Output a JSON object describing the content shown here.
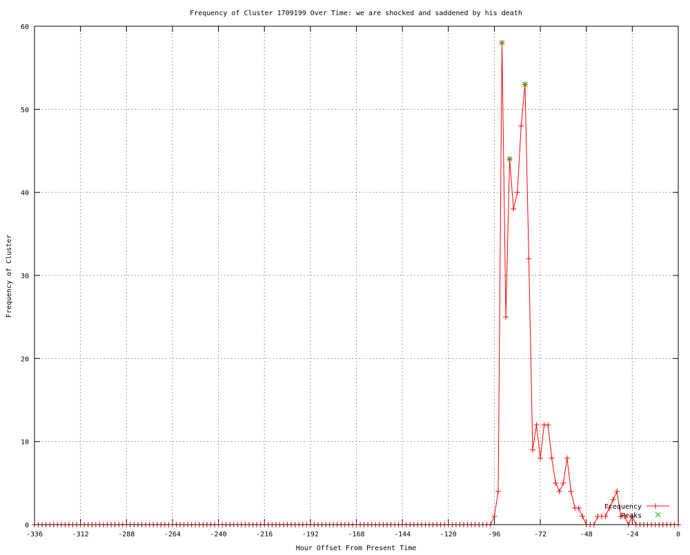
{
  "chart_data": {
    "type": "line",
    "title": "Frequency of Cluster 1709199 Over Time: we are shocked and saddened by his death",
    "xlabel": "Hour Offset From Present Time",
    "ylabel": "Frequency of Cluster",
    "xlim": [
      -336,
      0
    ],
    "ylim": [
      0,
      60
    ],
    "xticks": [
      -336,
      -312,
      -288,
      -264,
      -240,
      -216,
      -192,
      -168,
      -144,
      -120,
      -96,
      -72,
      -48,
      -24,
      0
    ],
    "yticks": [
      0,
      10,
      20,
      30,
      40,
      50,
      60
    ],
    "grid": true,
    "legend_position": "bottom-right",
    "x": [
      -336,
      -334,
      -332,
      -330,
      -328,
      -326,
      -324,
      -322,
      -320,
      -318,
      -316,
      -314,
      -312,
      -310,
      -308,
      -306,
      -304,
      -302,
      -300,
      -298,
      -296,
      -294,
      -292,
      -290,
      -288,
      -286,
      -284,
      -282,
      -280,
      -278,
      -276,
      -274,
      -272,
      -270,
      -268,
      -266,
      -264,
      -262,
      -260,
      -258,
      -256,
      -254,
      -252,
      -250,
      -248,
      -246,
      -244,
      -242,
      -240,
      -238,
      -236,
      -234,
      -232,
      -230,
      -228,
      -226,
      -224,
      -222,
      -220,
      -218,
      -216,
      -214,
      -212,
      -210,
      -208,
      -206,
      -204,
      -202,
      -200,
      -198,
      -196,
      -194,
      -192,
      -190,
      -188,
      -186,
      -184,
      -182,
      -180,
      -178,
      -176,
      -174,
      -172,
      -170,
      -168,
      -166,
      -164,
      -162,
      -160,
      -158,
      -156,
      -154,
      -152,
      -150,
      -148,
      -146,
      -144,
      -142,
      -140,
      -138,
      -136,
      -134,
      -132,
      -130,
      -128,
      -126,
      -124,
      -122,
      -120,
      -118,
      -116,
      -114,
      -112,
      -110,
      -108,
      -106,
      -104,
      -102,
      -100,
      -98,
      -96,
      -94,
      -92,
      -90,
      -88,
      -86,
      -84,
      -82,
      -80,
      -78,
      -76,
      -74,
      -72,
      -70,
      -68,
      -66,
      -64,
      -62,
      -60,
      -58,
      -56,
      -54,
      -52,
      -50,
      -48,
      -46,
      -44,
      -42,
      -40,
      -38,
      -36,
      -34,
      -32,
      -30,
      -28,
      -26,
      -24,
      -22,
      -20,
      -18,
      -16,
      -14,
      -12,
      -10,
      -8,
      -6,
      -4,
      -2,
      0
    ],
    "series": [
      {
        "name": "Frequency",
        "color": "#ff0000",
        "marker": "plus",
        "values": [
          0,
          0,
          0,
          0,
          0,
          0,
          0,
          0,
          0,
          0,
          0,
          0,
          0,
          0,
          0,
          0,
          0,
          0,
          0,
          0,
          0,
          0,
          0,
          0,
          0,
          0,
          0,
          0,
          0,
          0,
          0,
          0,
          0,
          0,
          0,
          0,
          0,
          0,
          0,
          0,
          0,
          0,
          0,
          0,
          0,
          0,
          0,
          0,
          0,
          0,
          0,
          0,
          0,
          0,
          0,
          0,
          0,
          0,
          0,
          0,
          0,
          0,
          0,
          0,
          0,
          0,
          0,
          0,
          0,
          0,
          0,
          0,
          0,
          0,
          0,
          0,
          0,
          0,
          0,
          0,
          0,
          0,
          0,
          0,
          0,
          0,
          0,
          0,
          0,
          0,
          0,
          0,
          0,
          0,
          0,
          0,
          0,
          0,
          0,
          0,
          0,
          0,
          0,
          0,
          0,
          0,
          0,
          0,
          0,
          0,
          0,
          0,
          0,
          0,
          0,
          0,
          0,
          0,
          0,
          0,
          1,
          4,
          58,
          25,
          44,
          38,
          40,
          48,
          53,
          32,
          9,
          12,
          8,
          12,
          12,
          8,
          5,
          4,
          5,
          8,
          4,
          2,
          2,
          1,
          0,
          0,
          0,
          1,
          1,
          1,
          2,
          3,
          4,
          1,
          1,
          0,
          1,
          0,
          0,
          0,
          0,
          0,
          0,
          0,
          0,
          0,
          0,
          0,
          0
        ]
      },
      {
        "name": "Peaks",
        "color": "#00c000",
        "marker": "cross",
        "points": [
          [
            -92,
            58
          ],
          [
            -88,
            44
          ],
          [
            -80,
            53
          ]
        ]
      }
    ]
  }
}
